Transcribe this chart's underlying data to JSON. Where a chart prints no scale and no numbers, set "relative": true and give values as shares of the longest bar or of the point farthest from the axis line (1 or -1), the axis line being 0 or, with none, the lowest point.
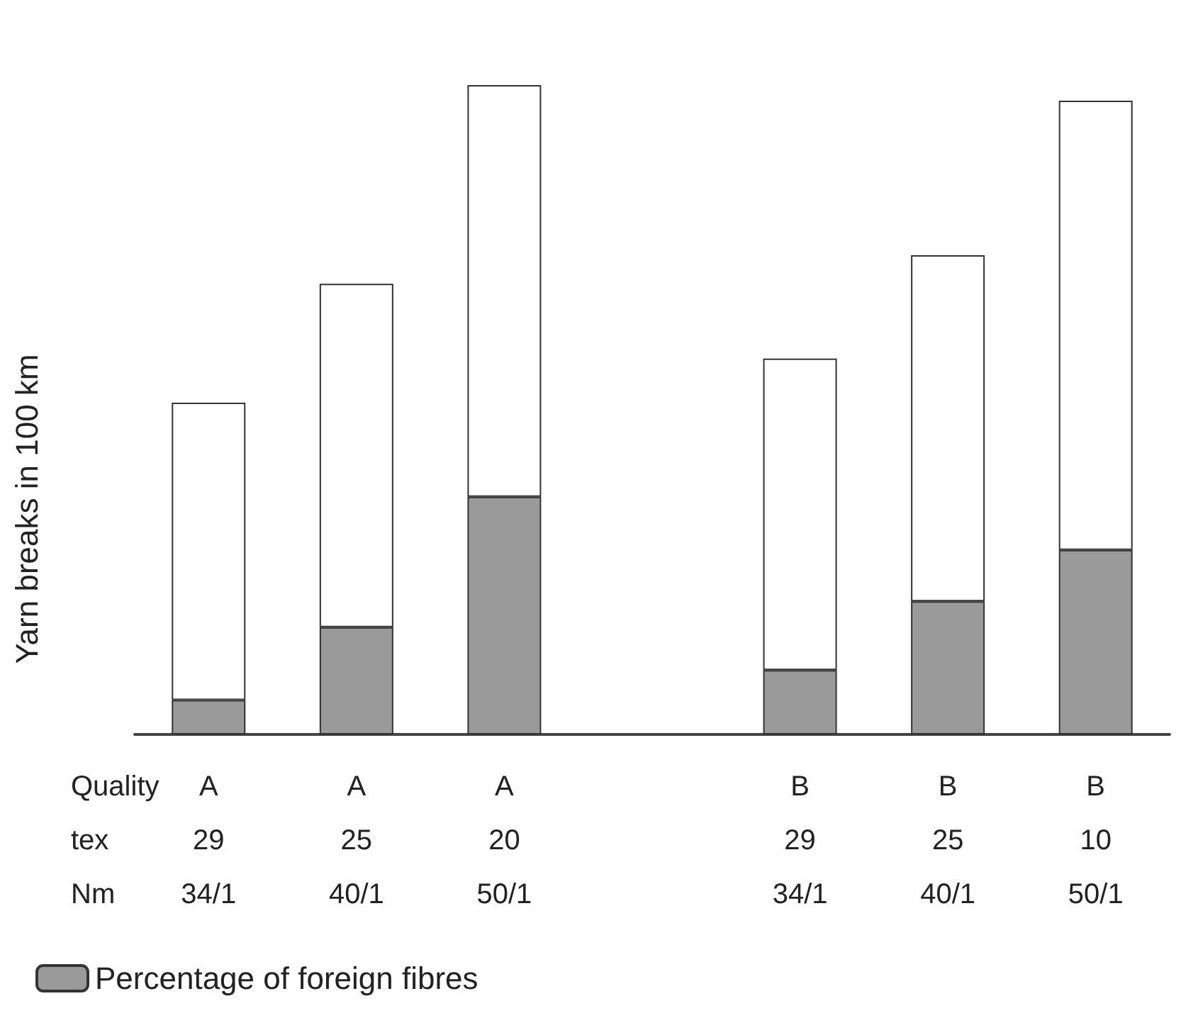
{
  "chart_data": {
    "type": "bar",
    "relative": true,
    "stacked": true,
    "ylabel": "Yarn breaks in 100 km",
    "categories": [
      "A\n29\n34/1",
      "A\n25\n40/1",
      "A\n20\n50/1",
      null,
      "B\n29\n34/1",
      "B\n25\n40/1",
      "B\n10\n50/1"
    ],
    "series": [
      {
        "name": "Percentage of foreign fibres",
        "color": "#9a9a9a",
        "values": [
          0.053,
          0.165,
          0.366,
          null,
          0.099,
          0.205,
          0.284
        ]
      },
      {
        "color": "#ffffff",
        "values": [
          0.458,
          0.529,
          0.634,
          null,
          0.48,
          0.533,
          0.692
        ]
      }
    ],
    "annotations": [
      "Quality\ntex\nNm"
    ],
    "legend": "bottom left"
  }
}
